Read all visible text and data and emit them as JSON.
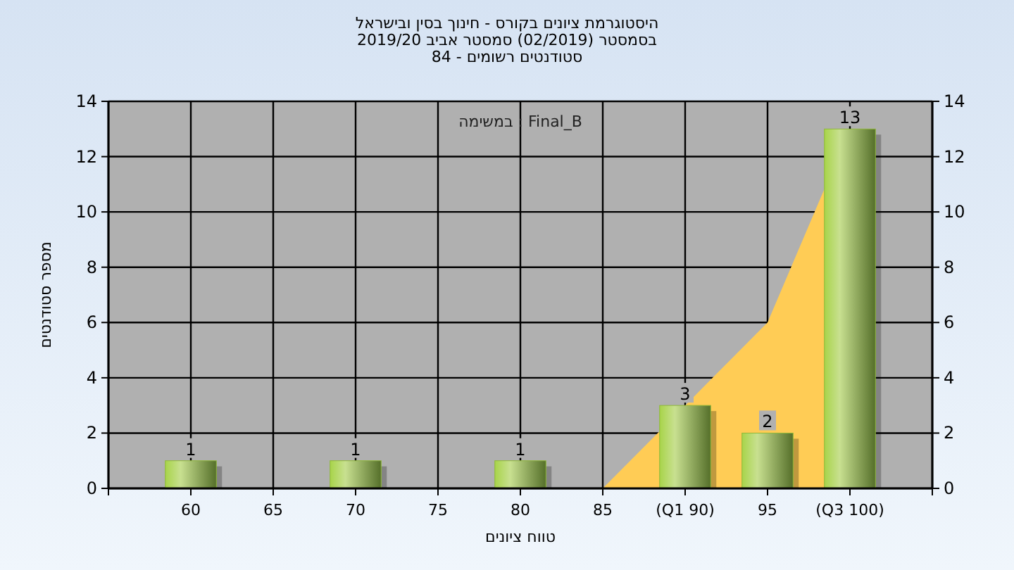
{
  "chart_data": {
    "type": "bar",
    "title": "היסטוגרמת ציונים בקורס - חינוך בסין ובישראל",
    "subtitle": "בסמסטר (02/2019) סמסטר אביב 2019/20\nסטודנטים רשומים - 84",
    "xlabel": "טווח ציונים",
    "ylabel": "מספר סטודנטים",
    "annotations": [
      "Final_B : במשימה"
    ],
    "categories": [
      "60",
      "65",
      "70",
      "75",
      "80",
      "85",
      "(Q1 90)",
      "95",
      "(Q3 100)"
    ],
    "series": [
      {
        "type": "area",
        "color": "#ffcc55",
        "values": [
          null,
          null,
          null,
          null,
          null,
          0,
          3,
          6,
          13
        ]
      },
      {
        "type": "bar",
        "color": "#8fb83a",
        "values": [
          1,
          0,
          1,
          0,
          1,
          0,
          3,
          2,
          13
        ],
        "value_labels": [
          "1",
          null,
          "1",
          null,
          "1",
          null,
          "3",
          "2",
          "13"
        ]
      }
    ],
    "ylim": [
      0,
      14
    ],
    "yticks": [
      0,
      2,
      4,
      6,
      8,
      10,
      12,
      14
    ],
    "y2lim": [
      0,
      14
    ],
    "y2ticks": [
      0,
      2,
      4,
      6,
      8,
      10,
      12,
      14
    ],
    "grid": true
  }
}
